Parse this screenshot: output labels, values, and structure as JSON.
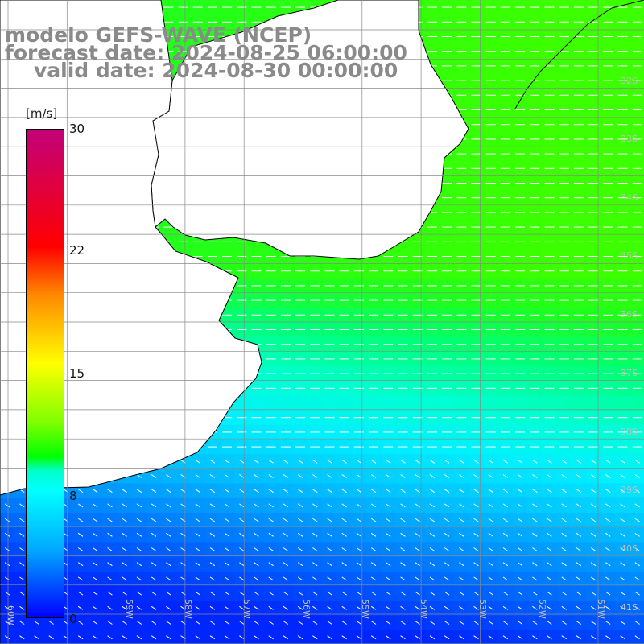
{
  "title": {
    "model": "modelo GEFS-WAVE (NCEP)",
    "forecast": "forecast date: 2024-08-25 06:00:00",
    "valid": "valid date: 2024-08-30 00:00:00"
  },
  "colorbar": {
    "unit": "[m/s]",
    "ticks": [
      "30",
      "22",
      "15",
      "8",
      "0"
    ],
    "range": [
      0,
      30
    ]
  },
  "grid": {
    "lon_labels": [
      "60W",
      "59W",
      "58W",
      "57W",
      "56W",
      "55W",
      "54W",
      "53W",
      "52W",
      "51W"
    ],
    "lat_labels": [
      "32S",
      "33S",
      "34S",
      "35S",
      "36S",
      "37S",
      "38S",
      "39S",
      "40S",
      "41S"
    ]
  },
  "colors": {
    "land": "#ffffff",
    "coast": "#000000",
    "grid": "#888888",
    "arrows": "#ffffff",
    "title_text": "#8a8a8a"
  }
}
